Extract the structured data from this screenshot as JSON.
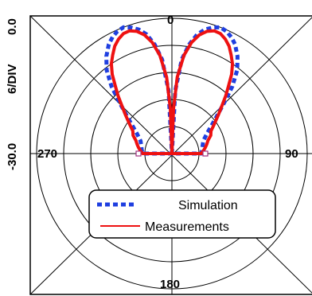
{
  "chart_data": {
    "type": "polar",
    "angle_labels": [
      "0",
      "90",
      "180",
      "270"
    ],
    "radial_labels": {
      "max": "0.0",
      "min": "-30.0",
      "scale": "6/DIV"
    },
    "r_range_db": [
      -30,
      0
    ],
    "rings": 5,
    "db_per_div": 6,
    "legend_placement": "bottom-center",
    "series": [
      {
        "name": "Simulation",
        "color": "#1f3fe0",
        "style": "dotted",
        "points": [
          [
            0,
            -30
          ],
          [
            3,
            -16
          ],
          [
            6,
            -9
          ],
          [
            9,
            -5.5
          ],
          [
            12,
            -3
          ],
          [
            15,
            -1.5
          ],
          [
            18,
            -0.6
          ],
          [
            21,
            0
          ],
          [
            24,
            -0.3
          ],
          [
            27,
            -1
          ],
          [
            30,
            -2
          ],
          [
            34,
            -4
          ],
          [
            38,
            -6.5
          ],
          [
            42,
            -10
          ],
          [
            46,
            -14
          ],
          [
            52,
            -18
          ],
          [
            60,
            -21
          ],
          [
            68,
            -22.5
          ],
          [
            76,
            -23
          ],
          [
            84,
            -23.3
          ],
          [
            90,
            -23.5
          ],
          [
            270,
            -23.5
          ],
          [
            276,
            -23.3
          ],
          [
            284,
            -23
          ],
          [
            292,
            -22.5
          ],
          [
            300,
            -21
          ],
          [
            308,
            -18
          ],
          [
            314,
            -14
          ],
          [
            318,
            -10
          ],
          [
            322,
            -6.5
          ],
          [
            326,
            -4
          ],
          [
            330,
            -2
          ],
          [
            333,
            -1
          ],
          [
            336,
            -0.3
          ],
          [
            339,
            0
          ],
          [
            342,
            -0.6
          ],
          [
            345,
            -1.5
          ],
          [
            348,
            -3
          ],
          [
            351,
            -5.5
          ],
          [
            354,
            -9
          ],
          [
            357,
            -16
          ],
          [
            360,
            -30
          ]
        ]
      },
      {
        "name": "Measurements",
        "color": "#ee1111",
        "style": "solid",
        "points": [
          [
            0,
            -30
          ],
          [
            2,
            -20
          ],
          [
            4,
            -13
          ],
          [
            7,
            -8
          ],
          [
            10,
            -5
          ],
          [
            13,
            -3
          ],
          [
            16,
            -1.8
          ],
          [
            19,
            -1.2
          ],
          [
            22,
            -1.3
          ],
          [
            25,
            -2
          ],
          [
            28,
            -3
          ],
          [
            31,
            -4.5
          ],
          [
            34,
            -6
          ],
          [
            37,
            -8
          ],
          [
            40,
            -10.5
          ],
          [
            43,
            -12.5
          ],
          [
            46,
            -14.5
          ],
          [
            50,
            -16.5
          ],
          [
            55,
            -18.5
          ],
          [
            60,
            -20
          ],
          [
            65,
            -20.5
          ],
          [
            70,
            -21.5
          ],
          [
            75,
            -22
          ],
          [
            80,
            -22.5
          ],
          [
            85,
            -23
          ],
          [
            90,
            -23.5
          ],
          [
            270,
            -23.5
          ],
          [
            275,
            -23
          ],
          [
            280,
            -22.5
          ],
          [
            285,
            -22
          ],
          [
            290,
            -21.5
          ],
          [
            295,
            -20.5
          ],
          [
            300,
            -20
          ],
          [
            305,
            -18.5
          ],
          [
            310,
            -16.5
          ],
          [
            314,
            -14.5
          ],
          [
            317,
            -12.5
          ],
          [
            320,
            -10.5
          ],
          [
            323,
            -8
          ],
          [
            326,
            -6
          ],
          [
            329,
            -4.5
          ],
          [
            332,
            -3
          ],
          [
            335,
            -2
          ],
          [
            338,
            -1.3
          ],
          [
            341,
            -1.2
          ],
          [
            344,
            -1.8
          ],
          [
            347,
            -3
          ],
          [
            350,
            -5
          ],
          [
            353,
            -8
          ],
          [
            356,
            -13
          ],
          [
            358,
            -20
          ],
          [
            360,
            -30
          ]
        ]
      }
    ]
  }
}
